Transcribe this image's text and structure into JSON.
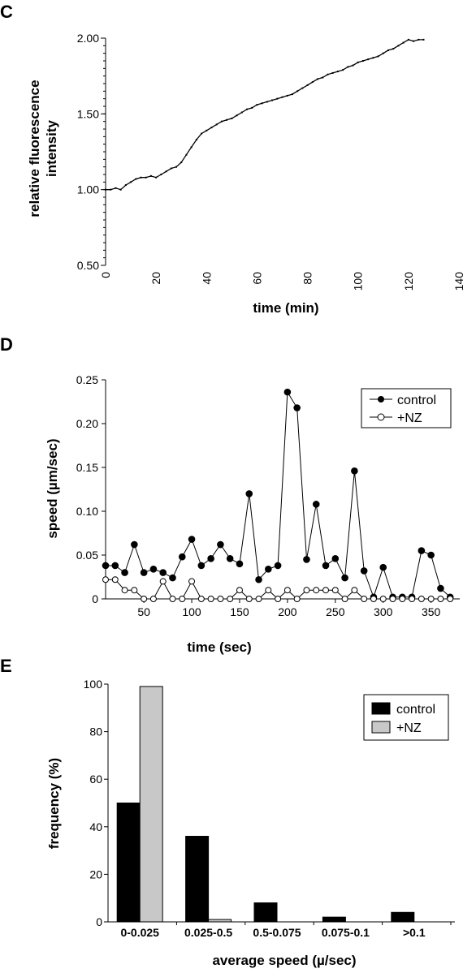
{
  "chart_data": [
    {
      "panel": "C",
      "type": "line",
      "xlabel": "time (min)",
      "ylabel": "relative fluorescence intensity",
      "ylabel_lines": [
        "relative fluorescence",
        "intensity"
      ],
      "xlim": [
        0,
        140
      ],
      "ylim": [
        0.5,
        2.0
      ],
      "x_ticks": [
        0,
        20,
        40,
        60,
        80,
        100,
        120,
        140
      ],
      "y_ticks": [
        "0.50",
        "1.00",
        "1.50",
        "2.00"
      ],
      "series": [
        {
          "x": [
            0,
            2,
            4,
            6,
            8,
            10,
            12,
            14,
            16,
            18,
            20,
            22,
            24,
            26,
            28,
            30,
            32,
            34,
            36,
            38,
            40,
            42,
            44,
            46,
            48,
            50,
            52,
            54,
            56,
            58,
            60,
            62,
            64,
            66,
            68,
            70,
            72,
            74,
            76,
            78,
            80,
            82,
            84,
            86,
            88,
            90,
            92,
            94,
            96,
            98,
            100,
            102,
            104,
            106,
            108,
            110,
            112,
            114,
            116,
            118,
            120,
            122,
            124,
            126
          ],
          "y": [
            1.0,
            1.0,
            1.01,
            1.0,
            1.03,
            1.05,
            1.07,
            1.08,
            1.08,
            1.09,
            1.08,
            1.1,
            1.12,
            1.14,
            1.15,
            1.18,
            1.23,
            1.28,
            1.33,
            1.37,
            1.39,
            1.41,
            1.43,
            1.45,
            1.46,
            1.47,
            1.49,
            1.51,
            1.53,
            1.54,
            1.56,
            1.57,
            1.58,
            1.59,
            1.6,
            1.61,
            1.62,
            1.63,
            1.65,
            1.67,
            1.69,
            1.71,
            1.73,
            1.74,
            1.76,
            1.77,
            1.78,
            1.79,
            1.81,
            1.82,
            1.84,
            1.85,
            1.86,
            1.87,
            1.88,
            1.9,
            1.92,
            1.93,
            1.95,
            1.97,
            1.99,
            1.98,
            1.99,
            1.99
          ]
        }
      ]
    },
    {
      "panel": "D",
      "type": "line",
      "xlabel": "time (sec)",
      "ylabel": "speed (µm/sec)",
      "xlim": [
        10,
        380
      ],
      "ylim": [
        0,
        0.25
      ],
      "x_ticks": [
        50,
        100,
        150,
        200,
        250,
        300,
        350
      ],
      "y_ticks": [
        "0",
        "0.05",
        "0.10",
        "0.15",
        "0.20",
        "0.25"
      ],
      "x": [
        10,
        20,
        30,
        40,
        50,
        60,
        70,
        80,
        90,
        100,
        110,
        120,
        130,
        140,
        150,
        160,
        170,
        180,
        190,
        200,
        210,
        220,
        230,
        240,
        250,
        260,
        270,
        280,
        290,
        300,
        310,
        320,
        330,
        340,
        350,
        360,
        370
      ],
      "series": [
        {
          "name": "control",
          "values": [
            0.038,
            0.038,
            0.03,
            0.062,
            0.03,
            0.034,
            0.03,
            0.024,
            0.048,
            0.068,
            0.038,
            0.046,
            0.062,
            0.046,
            0.04,
            0.12,
            0.022,
            0.034,
            0.038,
            0.236,
            0.218,
            0.045,
            0.108,
            0.038,
            0.046,
            0.024,
            0.146,
            0.032,
            0.002,
            0.036,
            0.002,
            0.002,
            0.002,
            0.055,
            0.05,
            0.012,
            0.002
          ],
          "marker": "filled"
        },
        {
          "name": "+NZ",
          "values": [
            0.022,
            0.022,
            0.01,
            0.01,
            0.0,
            0.0,
            0.02,
            0.0,
            0.0,
            0.02,
            0.0,
            0.0,
            0.0,
            0.0,
            0.01,
            0.0,
            0.0,
            0.01,
            0.0,
            0.01,
            0.0,
            0.01,
            0.01,
            0.01,
            0.01,
            0.0,
            0.01,
            0.0,
            0.0,
            0.0,
            0.0,
            0.0,
            0.0,
            0.0,
            0.0,
            0.0,
            0.0
          ],
          "marker": "open"
        }
      ],
      "legend": "top-right"
    },
    {
      "panel": "E",
      "type": "bar",
      "xlabel": "average speed (µ/sec)",
      "ylabel": "frequency (%)",
      "ylim": [
        0,
        100
      ],
      "y_ticks": [
        "0",
        "20",
        "40",
        "60",
        "80",
        "100"
      ],
      "categories": [
        "0-0.025",
        "0.025-0.5",
        "0.5-0.075",
        "0.075-0.1",
        ">0.1"
      ],
      "series": [
        {
          "name": "control",
          "values": [
            50,
            36,
            8,
            2,
            4
          ],
          "color": "#000000"
        },
        {
          "name": "+NZ",
          "values": [
            99,
            1,
            0,
            0,
            0
          ],
          "color": "#c8c8c8"
        }
      ],
      "legend": "top-right"
    }
  ]
}
